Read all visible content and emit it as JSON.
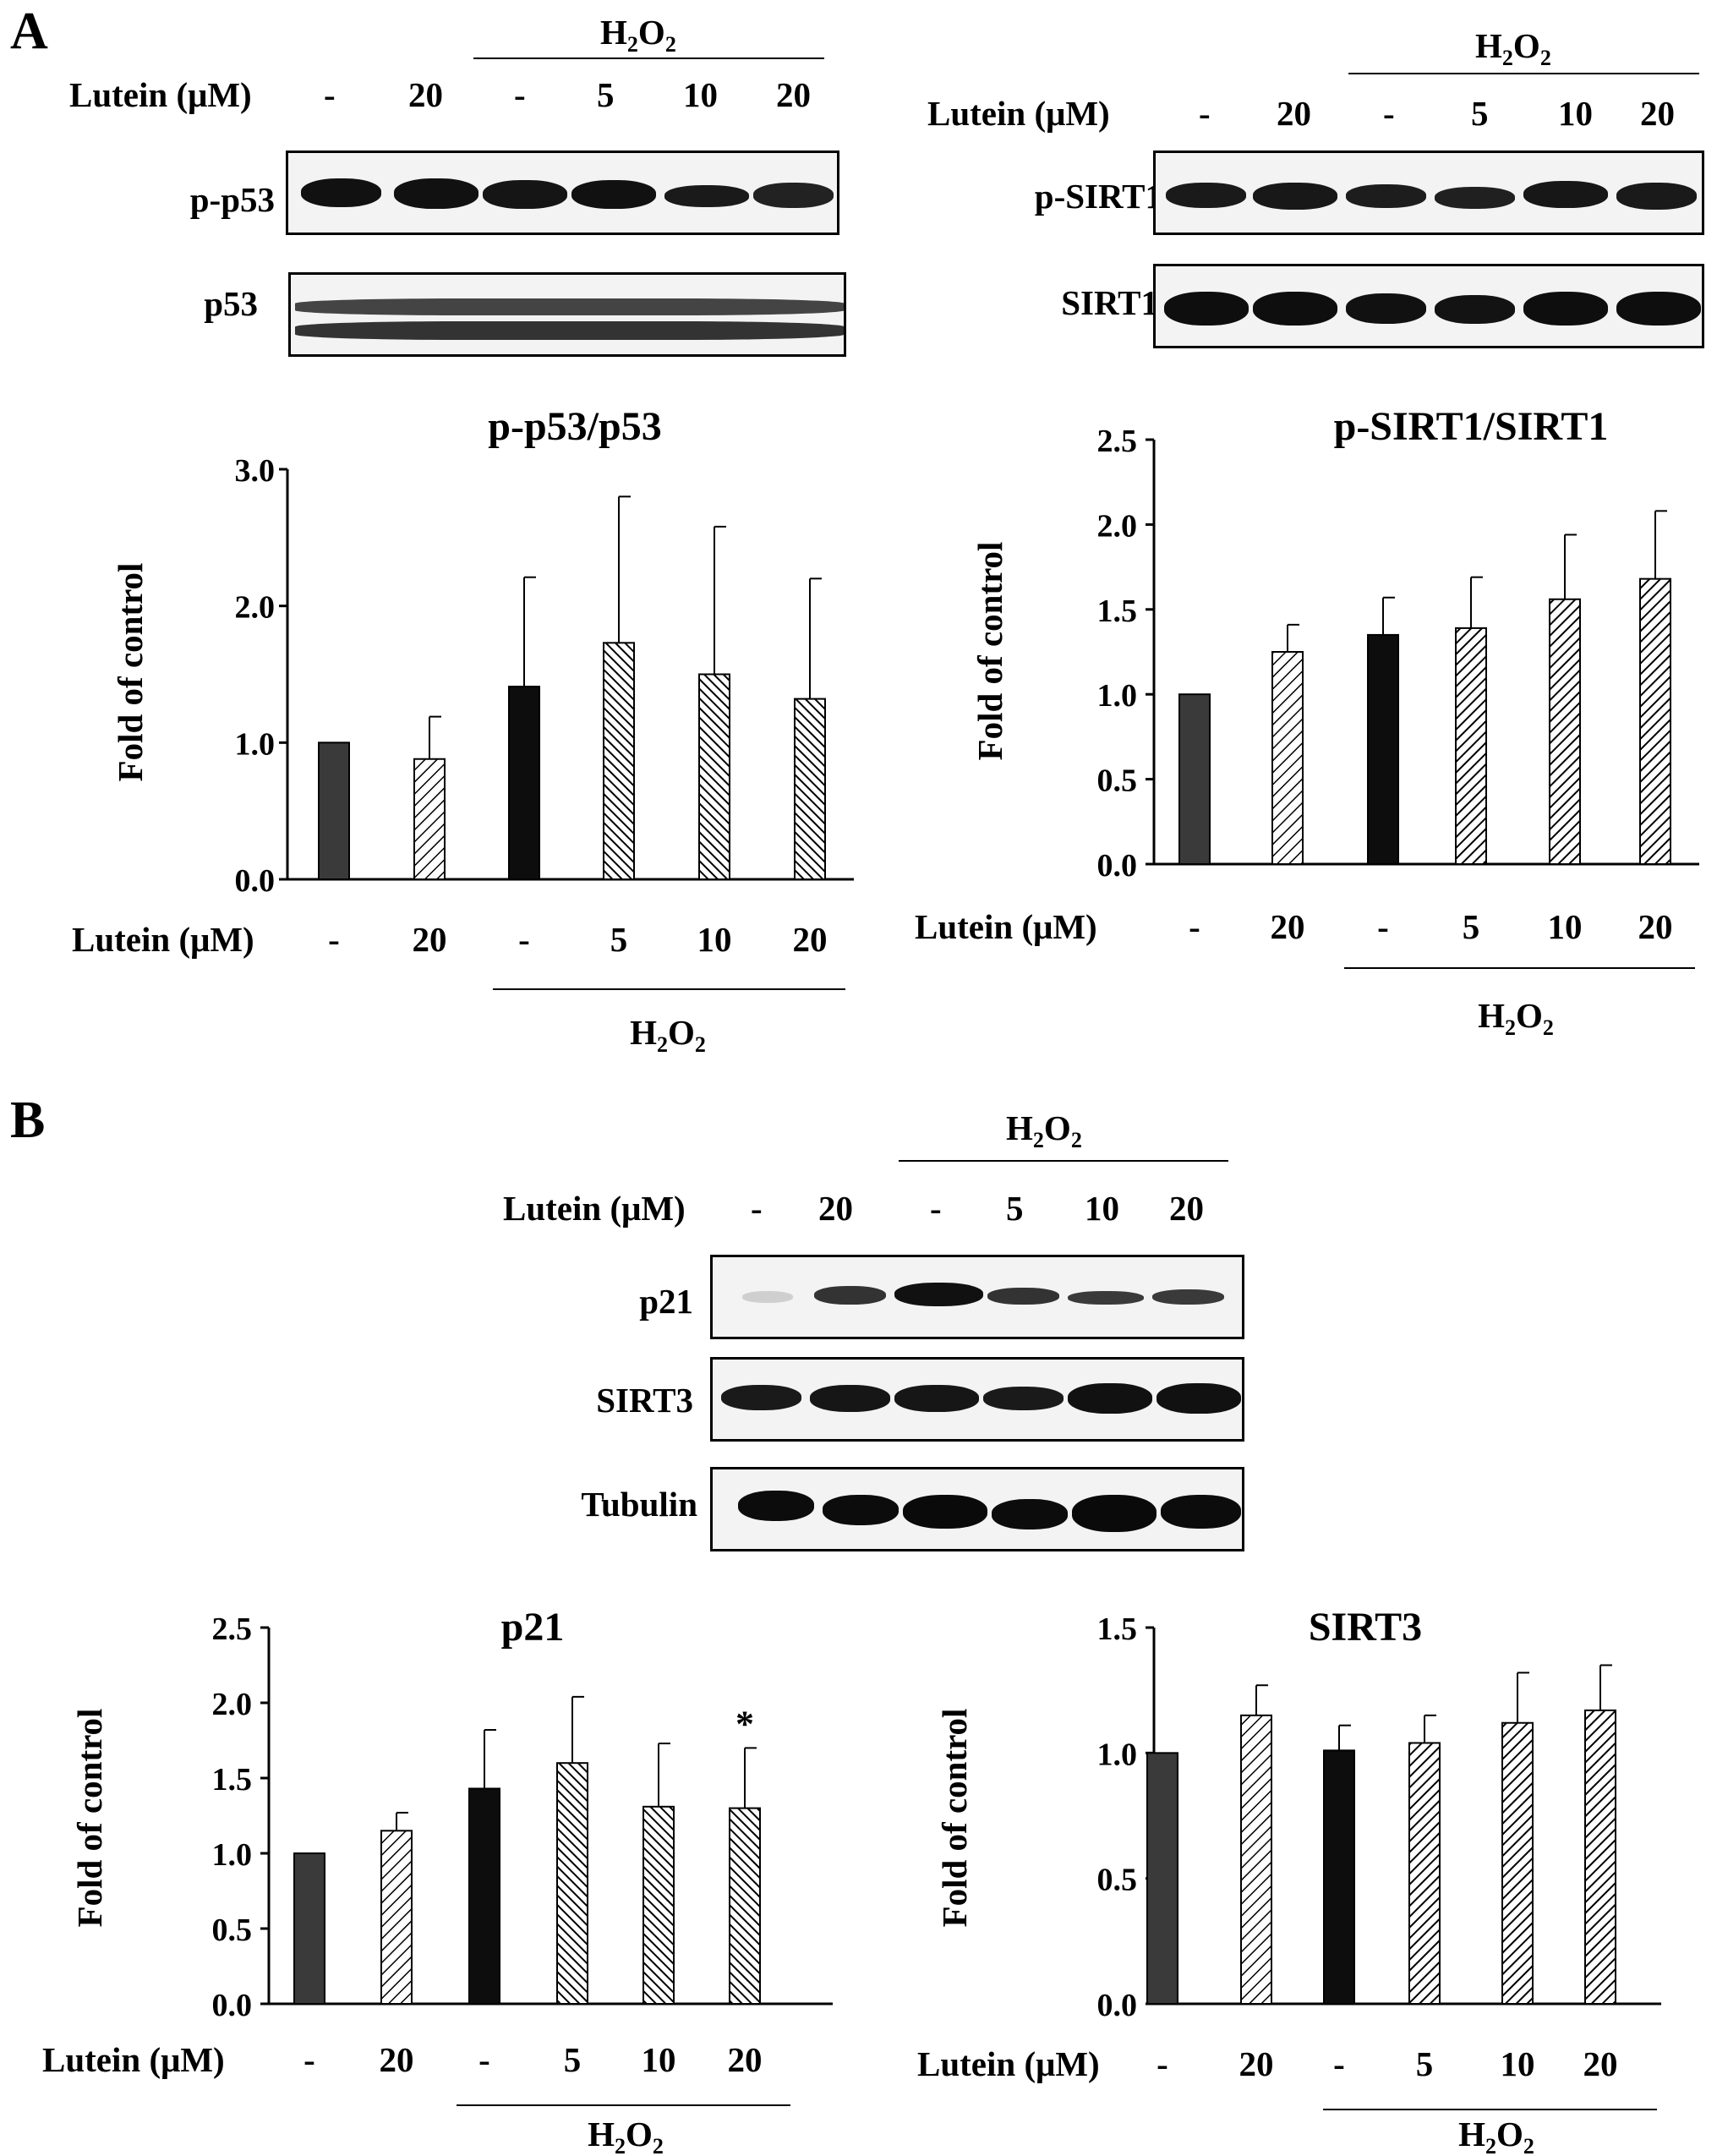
{
  "panels": {
    "a": "A",
    "b": "B"
  },
  "treatment": {
    "lutein_label": "Lutein (μM)",
    "h2o2_base": "H",
    "h2o2_sub1": "2",
    "h2o2_mid": "O",
    "h2o2_sub2": "2",
    "lanes": [
      "-",
      "20",
      "-",
      "5",
      "10",
      "20"
    ]
  },
  "blots": {
    "p_p53": "p-p53",
    "p53": "p53",
    "p_sirt1": "p-SIRT1",
    "sirt1": "SIRT1",
    "p21": "p21",
    "sirt3": "SIRT3",
    "tubulin": "Tubulin"
  },
  "colors": {
    "control": "#3a3a3a",
    "h2o2": "#0d0d0d",
    "hatch": "#000000"
  },
  "chart_data": [
    {
      "type": "bar",
      "title": "p-p53/p53",
      "ylabel": "Fold of control",
      "xlabel": "Lutein (μM)",
      "categories": [
        "-",
        "20",
        "-",
        "5",
        "10",
        "20"
      ],
      "group_label": "H2O2",
      "values": [
        1.0,
        0.88,
        1.41,
        1.73,
        1.5,
        1.32
      ],
      "errors": [
        0,
        0.31,
        0.8,
        1.07,
        1.08,
        0.88
      ],
      "ylim": [
        0,
        3.0
      ],
      "yticks": [
        "0.0",
        "1.0",
        "2.0",
        "3.0"
      ],
      "ytick_values": [
        0,
        1,
        2,
        3
      ],
      "annotations": []
    },
    {
      "type": "bar",
      "title": "p-SIRT1/SIRT1",
      "ylabel": "Fold of control",
      "xlabel": "Lutein (μM)",
      "categories": [
        "-",
        "20",
        "-",
        "5",
        "10",
        "20"
      ],
      "group_label": "H2O2",
      "values": [
        1.0,
        1.25,
        1.35,
        1.39,
        1.56,
        1.68
      ],
      "errors": [
        0,
        0.16,
        0.22,
        0.3,
        0.38,
        0.4
      ],
      "ylim": [
        0,
        2.5
      ],
      "yticks": [
        "0.0",
        "0.5",
        "1.0",
        "1.5",
        "2.0",
        "2.5"
      ],
      "ytick_values": [
        0,
        0.5,
        1,
        1.5,
        2,
        2.5
      ],
      "annotations": []
    },
    {
      "type": "bar",
      "title": "p21",
      "ylabel": "Fold of control",
      "xlabel": "Lutein (μM)",
      "categories": [
        "-",
        "20",
        "-",
        "5",
        "10",
        "20"
      ],
      "group_label": "H2O2",
      "values": [
        1.0,
        1.15,
        1.43,
        1.6,
        1.31,
        1.3
      ],
      "errors": [
        0,
        0.12,
        0.39,
        0.44,
        0.42,
        0.4
      ],
      "ylim": [
        0,
        2.5
      ],
      "yticks": [
        "0.0",
        "0.5",
        "1.0",
        "1.5",
        "2.0",
        "2.5"
      ],
      "ytick_values": [
        0,
        0.5,
        1,
        1.5,
        2,
        2.5
      ],
      "annotations": [
        {
          "bar": 5,
          "text": "*"
        }
      ]
    },
    {
      "type": "bar",
      "title": "SIRT3",
      "ylabel": "Fold of control",
      "xlabel": "Lutein (μM)",
      "categories": [
        "-",
        "20",
        "-",
        "5",
        "10",
        "20"
      ],
      "group_label": "H2O2",
      "values": [
        1.0,
        1.15,
        1.01,
        1.04,
        1.12,
        1.17
      ],
      "errors": [
        0,
        0.12,
        0.1,
        0.11,
        0.2,
        0.18
      ],
      "ylim": [
        0,
        1.5
      ],
      "yticks": [
        "0.0",
        "0.5",
        "1.0",
        "1.5"
      ],
      "ytick_values": [
        0,
        0.5,
        1,
        1.5
      ],
      "annotations": []
    }
  ]
}
